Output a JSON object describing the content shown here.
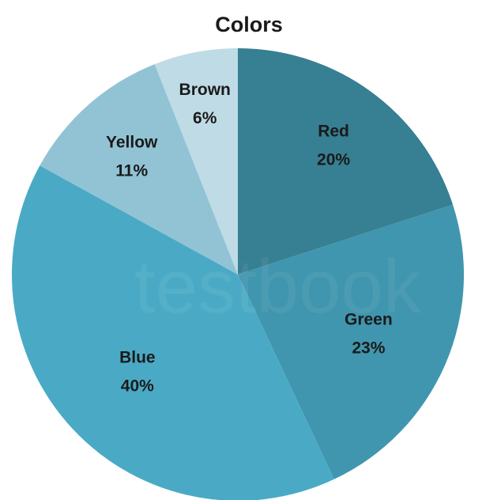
{
  "chart_data": {
    "type": "pie",
    "title": "Colors",
    "categories": [
      "Red",
      "Green",
      "Blue",
      "Yellow",
      "Brown"
    ],
    "values": [
      20,
      23,
      40,
      11,
      6
    ],
    "value_labels": [
      "20%",
      "23%",
      "40%",
      "11%",
      "6%"
    ],
    "colors": [
      "#377f92",
      "#4096ae",
      "#4aaac5",
      "#92c3d4",
      "#bfdbe5"
    ],
    "start_angle": "12 o'clock",
    "direction": "clockwise",
    "legend": "none",
    "labels_position": "inside"
  },
  "watermark": {
    "text": "testbook",
    "color": "#e8f4f7"
  }
}
